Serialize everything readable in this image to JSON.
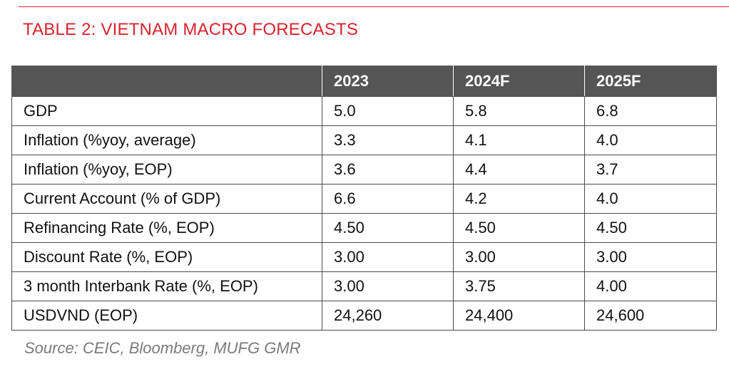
{
  "title": "TABLE 2: VIETNAM MACRO FORECASTS",
  "table": {
    "headers": [
      "",
      "2023",
      "2024F",
      "2025F"
    ],
    "rows": [
      [
        "GDP",
        "5.0",
        "5.8",
        "6.8"
      ],
      [
        "Inflation (%yoy, average)",
        "3.3",
        "4.1",
        "4.0"
      ],
      [
        "Inflation (%yoy, EOP)",
        "3.6",
        "4.4",
        "3.7"
      ],
      [
        "Current Account (% of GDP)",
        "6.6",
        "4.2",
        "4.0"
      ],
      [
        "Refinancing Rate (%, EOP)",
        "4.50",
        "4.50",
        "4.50"
      ],
      [
        "Discount Rate (%, EOP)",
        "3.00",
        "3.00",
        "3.00"
      ],
      [
        "3 month Interbank Rate (%, EOP)",
        "3.00",
        "3.75",
        "4.00"
      ],
      [
        "USDVND (EOP)",
        "24,260",
        "24,400",
        "24,600"
      ]
    ]
  },
  "source": "Source: CEIC, Bloomberg, MUFG GMR",
  "colors": {
    "accent": "#d9232e",
    "header_bg": "#555555",
    "source_text": "#7a7a7a"
  }
}
